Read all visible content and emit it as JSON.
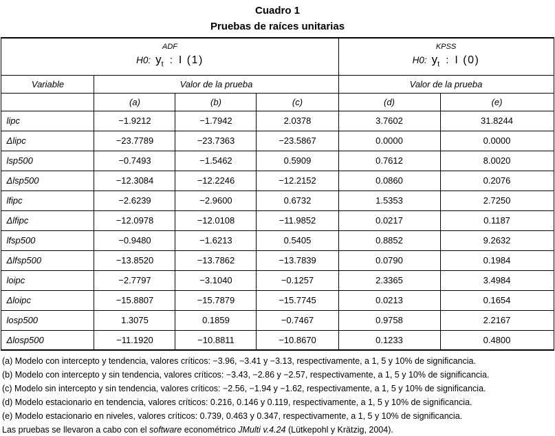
{
  "title": {
    "line1": "Cuadro 1",
    "line2": "Pruebas de raíces unitarias"
  },
  "table": {
    "groups": [
      {
        "method": "ADF",
        "h0_label": "H0:",
        "y": "y",
        "y_sub": "t",
        "colon": ":",
        "order": "I (1)"
      },
      {
        "method": "KPSS",
        "h0_label": "H0:",
        "y": "y",
        "y_sub": "t",
        "colon": ":",
        "order": "I (0)"
      }
    ],
    "variable_header": "Variable",
    "value_header": "Valor de la prueba",
    "col_labels": [
      "(a)",
      "(b)",
      "(c)",
      "(d)",
      "(e)"
    ],
    "rows": [
      {
        "variable": "lipc",
        "values": [
          "−1.9212",
          "−1.7942",
          "2.0378",
          "3.7602",
          "31.8244"
        ]
      },
      {
        "variable": "Δlipc",
        "values": [
          "−23.7789",
          "−23.7363",
          "−23.5867",
          "0.0000",
          "0.0000"
        ]
      },
      {
        "variable": "lsp500",
        "values": [
          "−0.7493",
          "−1.5462",
          "0.5909",
          "0.7612",
          "8.0020"
        ]
      },
      {
        "variable": "Δlsp500",
        "values": [
          "−12.3084",
          "−12.2246",
          "−12.2152",
          "0.0860",
          "0.2076"
        ]
      },
      {
        "variable": "lfipc",
        "values": [
          "−2.6239",
          "−2.9600",
          "0.6732",
          "1.5353",
          "2.7250"
        ]
      },
      {
        "variable": "Δlfipc",
        "values": [
          "−12.0978",
          "−12.0108",
          "−11.9852",
          "0.0217",
          "0.1187"
        ]
      },
      {
        "variable": "lfsp500",
        "values": [
          "−0.9480",
          "−1.6213",
          "0.5405",
          "0.8852",
          "9.2632"
        ]
      },
      {
        "variable": "Δlfsp500",
        "values": [
          "−13.8520",
          "−13.7862",
          "−13.7839",
          "0.0790",
          "0.1984"
        ]
      },
      {
        "variable": "loipc",
        "values": [
          "−2.7797",
          "−3.1040",
          "−0.1257",
          "2.3365",
          "3.4984"
        ]
      },
      {
        "variable": "Δloipc",
        "values": [
          "−15.8807",
          "−15.7879",
          "−15.7745",
          "0.0213",
          "0.1654"
        ]
      },
      {
        "variable": "losp500",
        "values": [
          "1.3075",
          "0.1859",
          "−0.7467",
          "0.9758",
          "2.2167"
        ]
      },
      {
        "variable": "Δlosp500",
        "values": [
          "−11.1920",
          "−10.8811",
          "−10.8670",
          "0.1233",
          "0.4800"
        ]
      }
    ]
  },
  "footnotes": [
    {
      "segments": [
        {
          "text": "(a) Modelo con intercepto y tendencia, valores críticos: −3.96, −3.41 y −3.13, respectivamente, a 1, 5 y 10% de significancia.",
          "italic": false
        }
      ]
    },
    {
      "segments": [
        {
          "text": "(b) Modelo con intercepto y sin tendencia, valores críticos: −3.43, −2.86 y −2.57, respectivamente, a 1, 5 y 10% de significancia.",
          "italic": false
        }
      ]
    },
    {
      "segments": [
        {
          "text": "(c) Modelo sin intercepto y sin tendencia, valores críticos: −2.56, −1.94 y −1.62, respectivamente, a 1, 5 y 10% de significancia.",
          "italic": false
        }
      ]
    },
    {
      "segments": [
        {
          "text": "(d) Modelo estacionario en tendencia, valores críticos: 0.216, 0.146 y 0.119, respectivamente, a 1, 5 y 10% de significancia.",
          "italic": false
        }
      ]
    },
    {
      "segments": [
        {
          "text": "(e) Modelo estacionario en niveles, valores críticos: 0.739, 0.463 y 0.347, respectivamente, a 1, 5 y 10% de significancia.",
          "italic": false
        }
      ]
    },
    {
      "segments": [
        {
          "text": "Las pruebas se llevaron a cabo con el ",
          "italic": false
        },
        {
          "text": "software",
          "italic": true
        },
        {
          "text": " econométrico ",
          "italic": false
        },
        {
          "text": "JMulti v.4.24",
          "italic": true
        },
        {
          "text": " (Lütkepohl y Krätzig, 2004).",
          "italic": false
        }
      ]
    }
  ]
}
